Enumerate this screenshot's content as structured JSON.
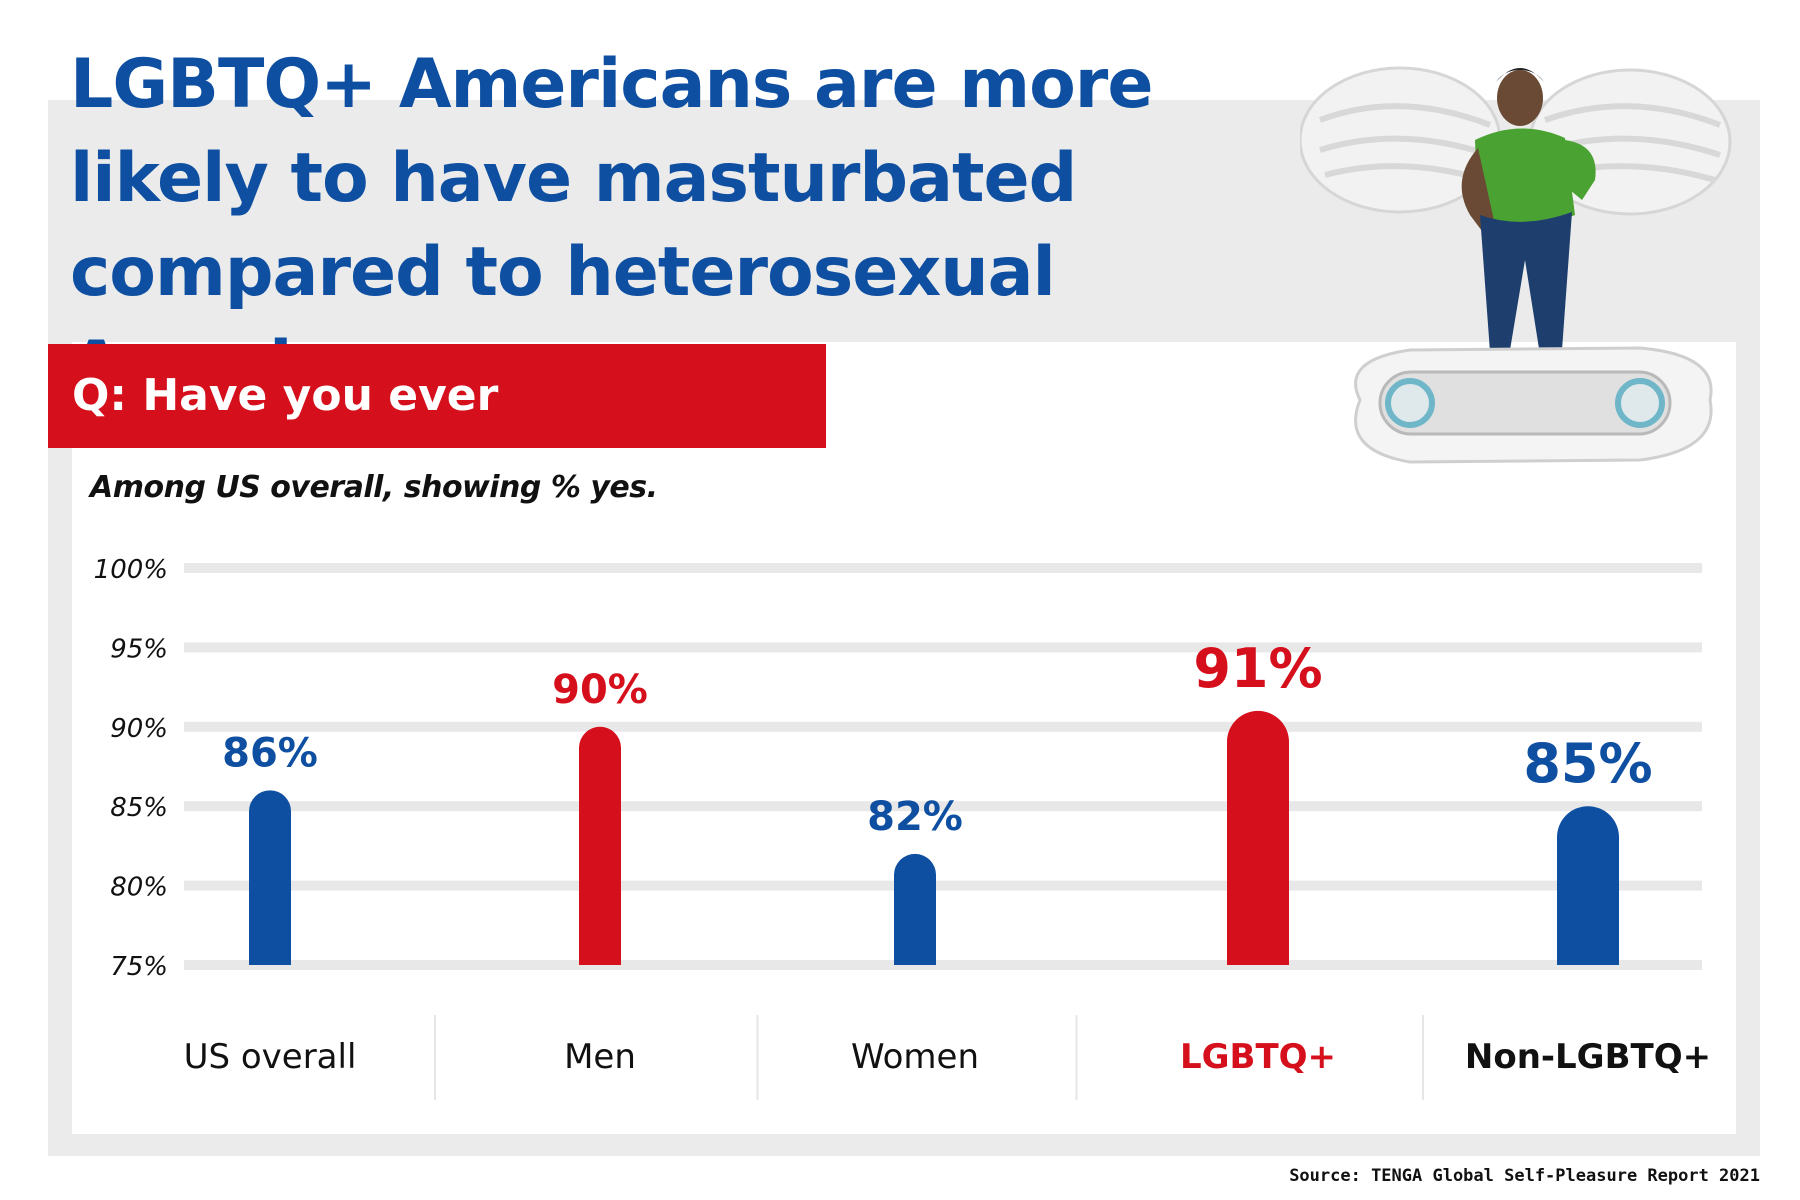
{
  "title": "LGBTQ+ Americans are more likely to have masturbated compared to heterosexual Americans.",
  "question": "Q: Have you ever masturbated?",
  "subtitle": "Among US overall, showing % yes.",
  "source": "Source: TENGA Global Self-Pleasure Report 2021",
  "colors": {
    "blue": "#0e4fa1",
    "red": "#d50f1b",
    "black": "#111111"
  },
  "chart_data": {
    "type": "bar",
    "categories": [
      "US overall",
      "Men",
      "Women",
      "LGBTQ+",
      "Non-LGBTQ+"
    ],
    "values": [
      86,
      90,
      82,
      91,
      85
    ],
    "value_labels": [
      "86%",
      "90%",
      "82%",
      "91%",
      "85%"
    ],
    "bar_colors": [
      "#0e4fa1",
      "#d50f1b",
      "#0e4fa1",
      "#d50f1b",
      "#0e4fa1"
    ],
    "category_colors": [
      "#111111",
      "#111111",
      "#111111",
      "#d50f1b",
      "#111111"
    ],
    "category_bold": [
      false,
      false,
      false,
      true,
      true
    ],
    "y_ticks": [
      "100%",
      "95%",
      "90%",
      "85%",
      "80%",
      "75%"
    ],
    "ylim": [
      75,
      100
    ],
    "grid": true
  }
}
